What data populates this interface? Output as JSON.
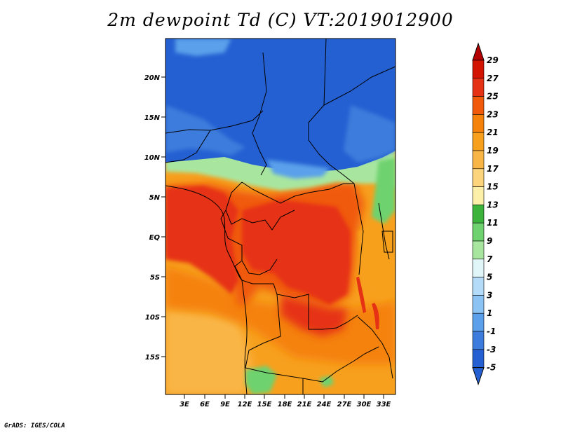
{
  "title": "2m dewpoint Td (C) VT:2019012900",
  "credit": "GrADS: IGES/COLA",
  "map": {
    "lat_labels": [
      "20N",
      "15N",
      "10N",
      "5N",
      "EQ",
      "5S",
      "10S",
      "15S"
    ],
    "lon_labels": [
      "3E",
      "6E",
      "9E",
      "12E",
      "15E",
      "18E",
      "21E",
      "24E",
      "27E",
      "30E",
      "33E"
    ]
  },
  "colorbar": {
    "labels": [
      "29",
      "27",
      "25",
      "23",
      "21",
      "19",
      "17",
      "15",
      "13",
      "11",
      "9",
      "7",
      "5",
      "3",
      "1",
      "-1",
      "-3",
      "-5"
    ],
    "colors": [
      "#b40000",
      "#d21400",
      "#e63214",
      "#f05a0a",
      "#f5820a",
      "#f7a01e",
      "#f9b646",
      "#fbd47c",
      "#fcf0a8",
      "#3cb43c",
      "#6ed26e",
      "#a8e6a0",
      "#e0f6f8",
      "#b4dcf8",
      "#8cc3f5",
      "#5aa0ea",
      "#3c7cdc",
      "#2460d2"
    ]
  }
}
